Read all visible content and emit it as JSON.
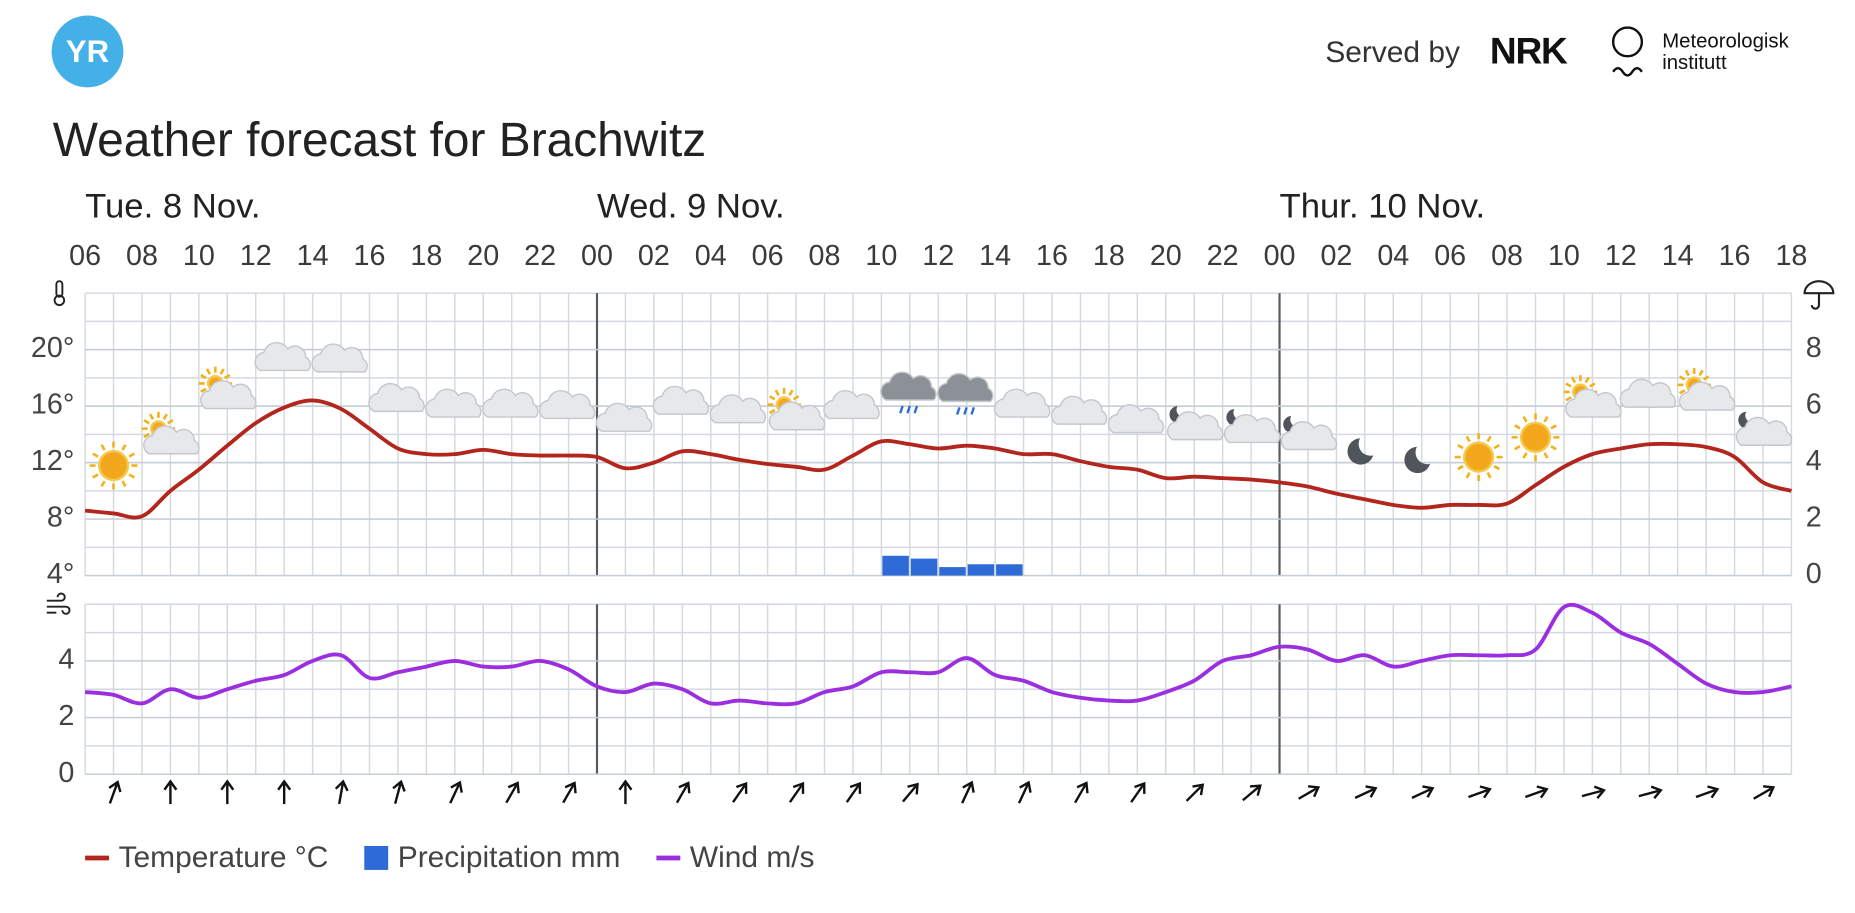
{
  "header": {
    "logo": "YR",
    "served_by": "Served by",
    "nrk": "NRK",
    "met_line1": "Meteorologisk",
    "met_line2": "institutt",
    "title": "Weather forecast for Brachwitz"
  },
  "chart_data": [
    {
      "type": "line",
      "days": [
        "Tue. 8 Nov.",
        "Wed. 9 Nov.",
        "Thur. 10 Nov."
      ],
      "categories": [
        "06",
        null,
        "08",
        null,
        "10",
        null,
        "12",
        null,
        "14",
        null,
        "16",
        null,
        "18",
        null,
        "20",
        null,
        "22",
        null,
        "00",
        null,
        "02",
        null,
        "04",
        null,
        "06",
        null,
        "08",
        null,
        "10",
        null,
        "12",
        null,
        "14",
        null,
        "16",
        null,
        "18",
        null,
        "20",
        null,
        "22",
        null,
        "00",
        null,
        "02",
        null,
        "04",
        null,
        "06",
        null,
        "08",
        null,
        "10",
        null,
        "12",
        null,
        "14",
        null,
        "16",
        null,
        "18"
      ],
      "ylim": [
        4,
        24
      ],
      "yticks": [
        {
          "value": 4,
          "label": "4°"
        },
        {
          "value": 8,
          "label": "8°"
        },
        {
          "value": 12,
          "label": "12°"
        },
        {
          "value": 16,
          "label": "16°"
        },
        {
          "value": 20,
          "label": "20°"
        }
      ],
      "y2lim": [
        0,
        10
      ],
      "y2ticks": [
        0,
        2,
        4,
        6,
        8
      ],
      "grid": true,
      "symbols": [
        "sun",
        "partcloud",
        "partcloud",
        "cloud",
        "cloud",
        "cloud",
        "cloud",
        "cloud",
        "cloud",
        "cloud",
        "cloud",
        "cloud",
        "partcloud",
        "cloud",
        "rain",
        "rain",
        "cloud",
        "cloud",
        "cloud",
        "nightcloud",
        "nightcloud",
        "nightcloud",
        "moon",
        "moon",
        "sun",
        "sun",
        "partcloud",
        "cloud",
        "partcloud",
        "nightcloud"
      ],
      "series": [
        {
          "name": "Temperature °C",
          "type": "line",
          "color": "#b3261e",
          "values": [
            8.6,
            8.4,
            8.2,
            10.0,
            11.5,
            13.2,
            14.8,
            15.9,
            16.4,
            15.8,
            14.4,
            13.0,
            12.6,
            12.6,
            12.9,
            12.6,
            12.5,
            12.5,
            12.4,
            11.6,
            12.0,
            12.8,
            12.6,
            12.2,
            11.9,
            11.7,
            11.5,
            12.5,
            13.5,
            13.3,
            13.0,
            13.2,
            13.0,
            12.6,
            12.6,
            12.1,
            11.7,
            11.5,
            10.9,
            11.0,
            10.9,
            10.8,
            10.6,
            10.3,
            9.8,
            9.4,
            9.0,
            8.8,
            9.0,
            9.0,
            9.1,
            10.4,
            11.7,
            12.6,
            13.0,
            13.3,
            13.3,
            13.1,
            12.4,
            10.6,
            10.0
          ]
        },
        {
          "name": "Precipitation mm",
          "type": "bar",
          "axis": "y2",
          "color": "#2f6bd6",
          "values": [
            null,
            null,
            null,
            null,
            null,
            null,
            null,
            null,
            null,
            null,
            null,
            null,
            null,
            null,
            null,
            null,
            null,
            null,
            null,
            null,
            null,
            null,
            null,
            null,
            null,
            null,
            null,
            null,
            0.7,
            0.6,
            0.3,
            0.4,
            0.4,
            null,
            null,
            null,
            null,
            null,
            null,
            null,
            null,
            null,
            null,
            null,
            null,
            null,
            null,
            null,
            null,
            null,
            null,
            null,
            null,
            null,
            null,
            null,
            null,
            null,
            null,
            null,
            null
          ]
        }
      ]
    },
    {
      "type": "line",
      "ylim": [
        0,
        6
      ],
      "yticks": [
        0,
        2,
        4
      ],
      "grid": true,
      "wind_direction": [
        20,
        0,
        0,
        0,
        10,
        15,
        25,
        30,
        30,
        0,
        30,
        35,
        35,
        35,
        40,
        25,
        25,
        30,
        35,
        45,
        50,
        60,
        65,
        65,
        70,
        70,
        75,
        75,
        70,
        60
      ],
      "series": [
        {
          "name": "Wind m/s",
          "color": "#9b2fe0",
          "values": [
            2.9,
            2.8,
            2.5,
            3.0,
            2.7,
            3.0,
            3.3,
            3.5,
            4.0,
            4.2,
            3.4,
            3.6,
            3.8,
            4.0,
            3.8,
            3.8,
            4.0,
            3.7,
            3.1,
            2.9,
            3.2,
            3.0,
            2.5,
            2.6,
            2.5,
            2.5,
            2.9,
            3.1,
            3.6,
            3.6,
            3.6,
            4.1,
            3.5,
            3.3,
            2.9,
            2.7,
            2.6,
            2.6,
            2.9,
            3.3,
            4.0,
            4.2,
            4.5,
            4.4,
            4.0,
            4.2,
            3.8,
            4.0,
            4.2,
            4.2,
            4.2,
            4.4,
            5.9,
            5.7,
            5.0,
            4.6,
            3.9,
            3.2,
            2.9,
            2.9,
            3.1
          ]
        }
      ]
    }
  ]
}
